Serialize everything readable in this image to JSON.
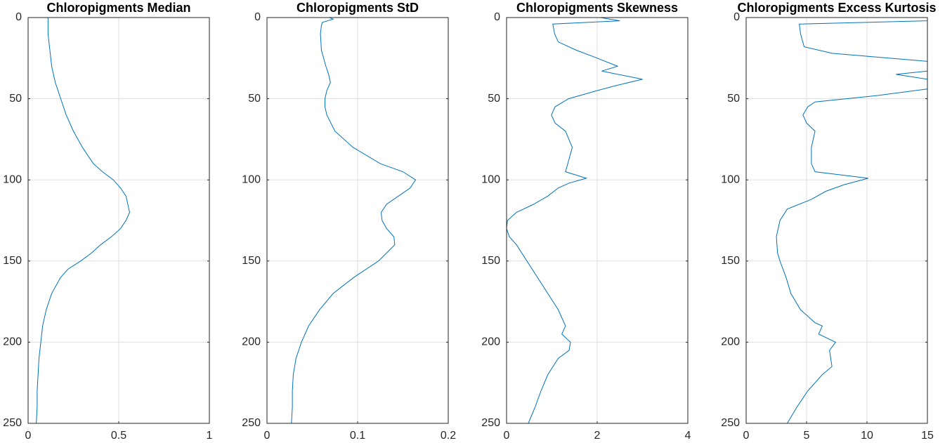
{
  "chart_data": [
    {
      "type": "line",
      "title": "Chloropigments Median",
      "orientation": "vertical",
      "reversed_depth": true,
      "grid": true,
      "color": "#0072bd",
      "x": [
        0,
        10,
        20,
        30,
        40,
        50,
        60,
        70,
        80,
        90,
        95,
        100,
        105,
        110,
        115,
        120,
        125,
        130,
        135,
        140,
        145,
        150,
        155,
        160,
        170,
        180,
        190,
        200,
        210,
        220,
        230,
        240,
        250
      ],
      "values": [
        0.11,
        0.11,
        0.12,
        0.13,
        0.15,
        0.18,
        0.21,
        0.25,
        0.3,
        0.36,
        0.41,
        0.47,
        0.51,
        0.54,
        0.55,
        0.56,
        0.54,
        0.51,
        0.46,
        0.4,
        0.35,
        0.29,
        0.22,
        0.18,
        0.13,
        0.1,
        0.08,
        0.07,
        0.06,
        0.055,
        0.05,
        0.05,
        0.045
      ],
      "xlim": [
        0,
        250
      ],
      "xticks": [
        0,
        50,
        100,
        150,
        200,
        250
      ],
      "ylim": [
        0,
        1
      ],
      "yticks": [
        0,
        0.5,
        1
      ]
    },
    {
      "type": "line",
      "title": "Chloropigments StD",
      "orientation": "vertical",
      "reversed_depth": true,
      "grid": true,
      "color": "#0072bd",
      "x": [
        0,
        1,
        3,
        5,
        10,
        20,
        30,
        35,
        40,
        45,
        50,
        55,
        60,
        70,
        80,
        90,
        95,
        100,
        105,
        110,
        115,
        120,
        125,
        130,
        135,
        140,
        150,
        160,
        170,
        180,
        190,
        200,
        210,
        220,
        230,
        240,
        250
      ],
      "values": [
        0.069,
        0.073,
        0.061,
        0.06,
        0.059,
        0.06,
        0.065,
        0.068,
        0.07,
        0.066,
        0.064,
        0.064,
        0.066,
        0.075,
        0.095,
        0.125,
        0.15,
        0.164,
        0.158,
        0.145,
        0.132,
        0.126,
        0.127,
        0.132,
        0.14,
        0.141,
        0.123,
        0.096,
        0.073,
        0.058,
        0.046,
        0.038,
        0.032,
        0.029,
        0.028,
        0.028,
        0.027
      ],
      "xlim": [
        0,
        250
      ],
      "xticks": [
        0,
        50,
        100,
        150,
        200,
        250
      ],
      "ylim": [
        0,
        0.2
      ],
      "yticks": [
        0,
        0.1,
        0.2
      ]
    },
    {
      "type": "line",
      "title": "Chloropigments Skewness",
      "orientation": "vertical",
      "reversed_depth": true,
      "grid": true,
      "color": "#0072bd",
      "x": [
        0,
        2,
        4,
        10,
        15,
        20,
        25,
        30,
        33,
        38,
        42,
        45,
        50,
        55,
        60,
        65,
        70,
        80,
        90,
        95,
        99,
        102,
        105,
        110,
        115,
        120,
        125,
        130,
        135,
        140,
        150,
        160,
        170,
        180,
        190,
        195,
        200,
        205,
        210,
        220,
        230,
        240,
        250
      ],
      "values": [
        2.07,
        2.5,
        1.02,
        1.06,
        1.14,
        1.53,
        2.0,
        2.45,
        2.1,
        3.0,
        2.4,
        2.0,
        1.37,
        1.07,
        0.99,
        1.07,
        1.3,
        1.45,
        1.35,
        1.3,
        1.76,
        1.38,
        1.14,
        0.91,
        0.6,
        0.22,
        0.02,
        0,
        0.06,
        0.22,
        0.45,
        0.68,
        0.91,
        1.14,
        1.3,
        1.22,
        1.41,
        1.38,
        1.14,
        0.91,
        0.76,
        0.63,
        0.48
      ],
      "xlim": [
        0,
        250
      ],
      "xticks": [
        0,
        50,
        100,
        150,
        200,
        250
      ],
      "ylim": [
        0,
        4
      ],
      "yticks": [
        0,
        2,
        4
      ]
    },
    {
      "type": "line",
      "title": "Chloropigments Excess Kurtosis",
      "orientation": "vertical",
      "reversed_depth": true,
      "grid": true,
      "color": "#0072bd",
      "x": [
        0,
        2,
        4,
        10,
        18,
        22,
        27,
        33,
        35,
        38,
        44,
        48,
        52,
        55,
        60,
        65,
        70,
        80,
        90,
        95,
        99,
        103,
        107,
        112,
        118,
        125,
        135,
        145,
        150,
        160,
        170,
        180,
        188,
        190,
        195,
        200,
        205,
        215,
        220,
        230,
        240,
        250
      ],
      "values": [
        15,
        15,
        4.4,
        4.5,
        4.8,
        7.1,
        15,
        15,
        12.4,
        15,
        15,
        10.9,
        5.7,
        5.1,
        4.7,
        5.0,
        5.7,
        5.4,
        5.4,
        5.7,
        10.1,
        8.1,
        6.6,
        5.4,
        3.4,
        2.8,
        2.5,
        2.6,
        2.8,
        3.3,
        3.7,
        4.5,
        5.7,
        6.3,
        6.0,
        7.4,
        6.9,
        7.1,
        6.3,
        5.1,
        4.2,
        3.4
      ],
      "xlim": [
        0,
        250
      ],
      "xticks": [
        0,
        50,
        100,
        150,
        200,
        250
      ],
      "ylim": [
        0,
        15
      ],
      "yticks": [
        0,
        5,
        10,
        15
      ]
    }
  ]
}
